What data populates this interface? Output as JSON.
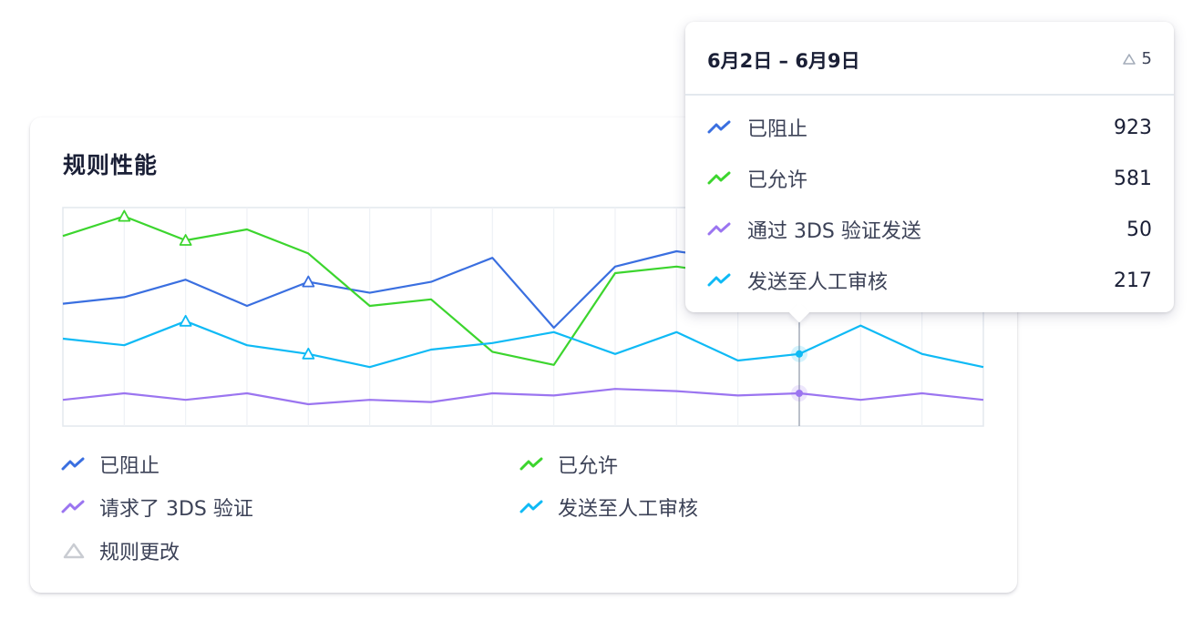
{
  "card": {
    "title": "规则性能"
  },
  "chart_data": {
    "type": "line",
    "x": [
      0,
      1,
      2,
      3,
      4,
      5,
      6,
      7,
      8,
      9,
      10,
      11,
      12,
      13,
      14,
      15
    ],
    "title": "规则性能",
    "xlabel": "",
    "ylabel": "",
    "grid": true,
    "legend_position": "bottom",
    "series": [
      {
        "name": "已阻止",
        "color": "#3a6fe0",
        "values": [
          56,
          59,
          67,
          55,
          66,
          61,
          66,
          77,
          45,
          73,
          80,
          76,
          84,
          66,
          70,
          66
        ]
      },
      {
        "name": "已允许",
        "color": "#3cd52e",
        "values": [
          87,
          96,
          85,
          90,
          79,
          55,
          58,
          34,
          28,
          70,
          73,
          69,
          72,
          90,
          83,
          79
        ]
      },
      {
        "name": "请求了 3DS 验证",
        "color": "#9b75f0",
        "values": [
          12,
          15,
          12,
          15,
          10,
          12,
          11,
          15,
          14,
          17,
          16,
          14,
          15,
          12,
          15,
          12
        ]
      },
      {
        "name": "发送至人工审核",
        "color": "#0fbaf5",
        "values": [
          40,
          37,
          48,
          37,
          33,
          27,
          35,
          38,
          43,
          33,
          43,
          30,
          33,
          46,
          33,
          27
        ]
      }
    ],
    "rule_change_markers": [
      {
        "series": "已允许",
        "x": 1
      },
      {
        "series": "已允许",
        "x": 2
      },
      {
        "series": "已阻止",
        "x": 4
      },
      {
        "series": "发送至人工审核",
        "x": 2
      },
      {
        "series": "发送至人工审核",
        "x": 4
      }
    ],
    "hover_index": 12
  },
  "legend": {
    "items": [
      {
        "label": "已阻止",
        "color": "#3a6fe0",
        "icon": "trend-line-icon"
      },
      {
        "label": "已允许",
        "color": "#3cd52e",
        "icon": "trend-line-icon"
      },
      {
        "label": "请求了 3DS 验证",
        "color": "#9b75f0",
        "icon": "trend-line-icon"
      },
      {
        "label": "发送至人工审核",
        "color": "#0fbaf5",
        "icon": "trend-line-icon"
      },
      {
        "label": "规则更改",
        "color": "#c9ccd2",
        "icon": "triangle-icon"
      }
    ]
  },
  "tooltip": {
    "date_range": "6月2日 – 6月9日",
    "rule_change_count": "5",
    "rows": [
      {
        "label": "已阻止",
        "value": "923",
        "color": "#3a6fe0"
      },
      {
        "label": "已允许",
        "value": "581",
        "color": "#3cd52e"
      },
      {
        "label": "通过 3DS 验证发送",
        "value": "50",
        "color": "#9b75f0"
      },
      {
        "label": "发送至人工审核",
        "value": "217",
        "color": "#0fbaf5"
      }
    ]
  }
}
